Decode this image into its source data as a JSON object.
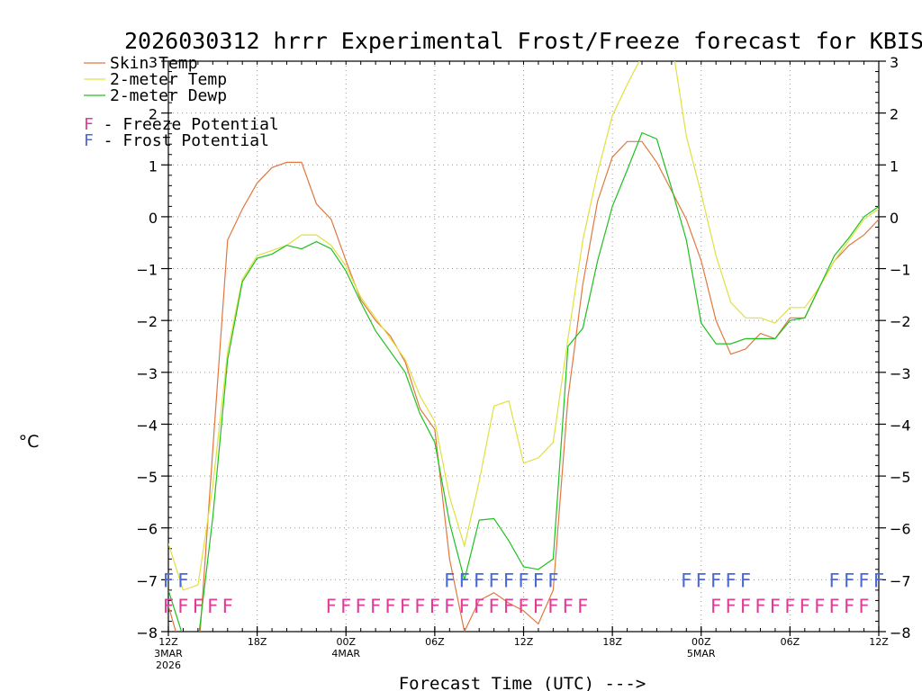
{
  "chart_data": {
    "type": "line",
    "title": "2026030312 hrrr Experimental Frost/Freeze forecast for KBIS",
    "xlabel": "Forecast Time (UTC) --->",
    "ylabel": "°C",
    "ylim": [
      -8,
      3
    ],
    "y_ticks": [
      "3",
      "2",
      "1",
      "0",
      "−1",
      "−2",
      "−3",
      "−4",
      "−5",
      "−6",
      "−7",
      "−8"
    ],
    "xlim": [
      0,
      48
    ],
    "x_ticks": [
      {
        "hour": 0,
        "label": "12Z",
        "date": "3MAR",
        "year": "2026"
      },
      {
        "hour": 6,
        "label": "18Z"
      },
      {
        "hour": 12,
        "label": "00Z",
        "date": "4MAR"
      },
      {
        "hour": 18,
        "label": "06Z"
      },
      {
        "hour": 24,
        "label": "12Z"
      },
      {
        "hour": 30,
        "label": "18Z"
      },
      {
        "hour": 36,
        "label": "00Z",
        "date": "5MAR"
      },
      {
        "hour": 42,
        "label": "06Z"
      },
      {
        "hour": 48,
        "label": "12Z"
      }
    ],
    "series": [
      {
        "name": "Skin Temp",
        "color": "#e07840",
        "x": [
          0,
          1,
          2,
          3,
          4,
          5,
          6,
          7,
          8,
          9,
          10,
          11,
          12,
          13,
          14,
          15,
          16,
          17,
          18,
          19,
          20,
          21,
          22,
          23,
          24,
          25,
          26,
          27,
          28,
          29,
          30,
          31,
          32,
          33,
          34,
          35,
          36,
          37,
          38,
          39,
          40,
          41,
          42,
          43,
          44,
          45,
          46,
          47,
          48
        ],
        "y": [
          -7.5,
          -8.5,
          -8.6,
          -4.5,
          -0.45,
          0.15,
          0.65,
          0.95,
          1.05,
          1.05,
          0.25,
          -0.05,
          -0.85,
          -1.6,
          -2.0,
          -2.3,
          -2.8,
          -3.7,
          -4.1,
          -6.6,
          -8.0,
          -7.4,
          -7.25,
          -7.45,
          -7.6,
          -7.85,
          -7.2,
          -3.5,
          -1.3,
          0.3,
          1.15,
          1.45,
          1.45,
          1.05,
          0.5,
          -0.05,
          -0.85,
          -2.0,
          -2.65,
          -2.55,
          -2.25,
          -2.35,
          -1.95,
          -1.95,
          -1.35,
          -0.85,
          -0.55,
          -0.35,
          -0.05
        ]
      },
      {
        "name": "2-meter Temp",
        "color": "#e0e040",
        "x": [
          0,
          1,
          2,
          3,
          4,
          5,
          6,
          7,
          8,
          9,
          10,
          11,
          12,
          13,
          14,
          15,
          16,
          17,
          18,
          19,
          20,
          21,
          22,
          23,
          24,
          25,
          26,
          27,
          28,
          29,
          30,
          31,
          32,
          33,
          34,
          35,
          36,
          37,
          38,
          39,
          40,
          41,
          42,
          43,
          44,
          45,
          46,
          47,
          48
        ],
        "y": [
          -6.3,
          -7.2,
          -7.1,
          -5.2,
          -2.6,
          -1.2,
          -0.75,
          -0.65,
          -0.55,
          -0.35,
          -0.35,
          -0.55,
          -0.95,
          -1.55,
          -1.95,
          -2.35,
          -2.75,
          -3.45,
          -3.95,
          -5.4,
          -6.35,
          -5.1,
          -3.65,
          -3.55,
          -4.75,
          -4.65,
          -4.35,
          -2.35,
          -0.45,
          0.85,
          1.95,
          2.55,
          3.1,
          3.5,
          3.4,
          1.55,
          0.45,
          -0.75,
          -1.65,
          -1.95,
          -1.95,
          -2.05,
          -1.75,
          -1.75,
          -1.35,
          -0.85,
          -0.45,
          -0.05,
          0.15
        ]
      },
      {
        "name": "2-meter Dewp",
        "color": "#20c020",
        "x": [
          0,
          1,
          2,
          3,
          4,
          5,
          6,
          7,
          8,
          9,
          10,
          11,
          12,
          13,
          14,
          15,
          16,
          17,
          18,
          19,
          20,
          21,
          22,
          23,
          24,
          25,
          26,
          27,
          28,
          29,
          30,
          31,
          32,
          33,
          34,
          35,
          36,
          37,
          38,
          39,
          40,
          41,
          42,
          43,
          44,
          45,
          46,
          47,
          48
        ],
        "y": [
          -7.2,
          -8.1,
          -8.2,
          -5.8,
          -2.75,
          -1.25,
          -0.8,
          -0.72,
          -0.55,
          -0.62,
          -0.48,
          -0.62,
          -1.05,
          -1.65,
          -2.2,
          -2.6,
          -3.0,
          -3.8,
          -4.35,
          -5.9,
          -7.0,
          -5.85,
          -5.82,
          -6.25,
          -6.75,
          -6.8,
          -6.6,
          -2.5,
          -2.15,
          -0.85,
          0.2,
          0.9,
          1.62,
          1.5,
          0.55,
          -0.45,
          -2.05,
          -2.45,
          -2.45,
          -2.35,
          -2.35,
          -2.35,
          -2.0,
          -1.95,
          -1.35,
          -0.75,
          -0.4,
          0.0,
          0.2
        ]
      }
    ],
    "legend": [
      {
        "label": "Skin Temp",
        "color": "#e07840"
      },
      {
        "label": "2-meter Temp",
        "color": "#e0e040"
      },
      {
        "label": "2-meter Dewp",
        "color": "#20c020"
      }
    ],
    "flag_legend": [
      {
        "letter": "F",
        "text": " - Freeze Potential",
        "color": "#e03c96"
      },
      {
        "letter": "F",
        "text": " - Frost Potential",
        "color": "#4a68d8"
      }
    ],
    "frost_flags": {
      "color": "#4a68d8",
      "y": -7,
      "hours": [
        0,
        1,
        19,
        20,
        21,
        22,
        23,
        24,
        25,
        26,
        35,
        36,
        37,
        38,
        39,
        45,
        46,
        47,
        48
      ]
    },
    "freeze_flags": {
      "color": "#e03c96",
      "y": -7.5,
      "hours": [
        0,
        1,
        2,
        3,
        4,
        11,
        12,
        13,
        14,
        15,
        16,
        17,
        18,
        19,
        20,
        21,
        22,
        23,
        24,
        25,
        26,
        27,
        28,
        37,
        38,
        39,
        40,
        41,
        42,
        43,
        44,
        45,
        46,
        47
      ]
    }
  }
}
